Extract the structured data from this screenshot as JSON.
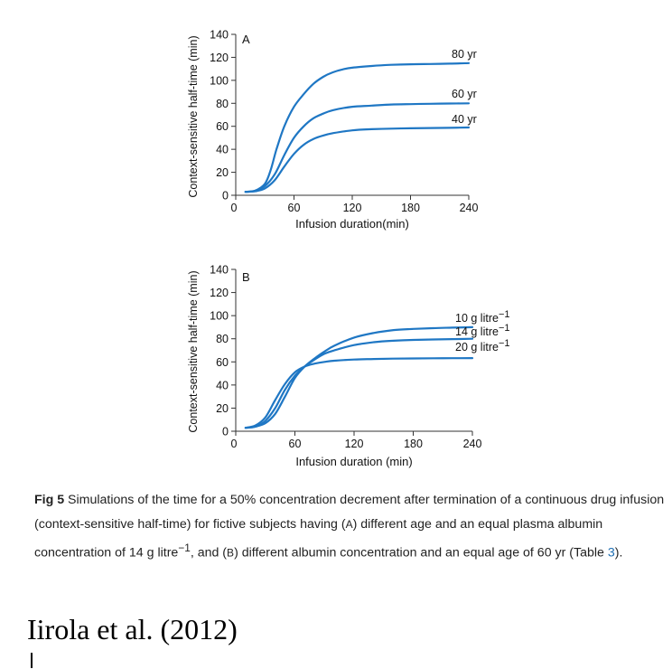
{
  "chart_data": [
    {
      "type": "line",
      "panel_label": "A",
      "xlabel": "Infusion duration(min)",
      "ylabel": "Context-sensitive half-time (min)",
      "xlim": [
        0,
        240
      ],
      "ylim": [
        0,
        140
      ],
      "x_ticks": [
        0,
        60,
        120,
        180,
        240
      ],
      "y_ticks": [
        0,
        20,
        40,
        60,
        80,
        100,
        120,
        140
      ],
      "grid": false,
      "series": [
        {
          "name": "80 yr",
          "color": "#1f77c4",
          "x": [
            10,
            20,
            30,
            36,
            42,
            50,
            60,
            70,
            80,
            90,
            100,
            110,
            120,
            140,
            160,
            180,
            200,
            220,
            240
          ],
          "y": [
            3,
            4,
            10,
            22,
            40,
            60,
            77,
            88,
            97,
            103,
            107,
            109.5,
            111,
            112.5,
            113.5,
            114,
            114.2,
            114.5,
            115
          ]
        },
        {
          "name": "60 yr",
          "color": "#1f77c4",
          "x": [
            10,
            20,
            30,
            40,
            50,
            60,
            70,
            80,
            90,
            100,
            120,
            140,
            160,
            180,
            200,
            220,
            240
          ],
          "y": [
            3,
            4,
            8,
            18,
            35,
            50,
            60,
            67,
            71,
            74,
            77,
            78,
            79,
            79.3,
            79.6,
            79.8,
            80
          ]
        },
        {
          "name": "40 yr",
          "color": "#1f77c4",
          "x": [
            10,
            20,
            30,
            40,
            50,
            60,
            70,
            80,
            90,
            100,
            120,
            140,
            160,
            180,
            200,
            220,
            240
          ],
          "y": [
            3,
            3.5,
            6,
            13,
            25,
            36,
            44,
            49,
            52,
            54,
            56.5,
            57.5,
            58,
            58.3,
            58.5,
            58.7,
            59
          ]
        }
      ]
    },
    {
      "type": "line",
      "panel_label": "B",
      "xlabel": "Infusion duration (min)",
      "ylabel": "Context-sensitive half-time (min)",
      "xlim": [
        0,
        240
      ],
      "ylim": [
        0,
        140
      ],
      "x_ticks": [
        0,
        60,
        120,
        180,
        240
      ],
      "y_ticks": [
        0,
        20,
        40,
        60,
        80,
        100,
        120,
        140
      ],
      "grid": false,
      "series": [
        {
          "name": "10 g litre−1",
          "color": "#1f77c4",
          "x": [
            10,
            20,
            30,
            40,
            50,
            60,
            70,
            80,
            90,
            100,
            120,
            140,
            160,
            180,
            200,
            220,
            240
          ],
          "y": [
            3,
            4,
            7,
            15,
            30,
            46,
            56,
            63,
            69,
            74,
            81,
            85,
            87.5,
            88.5,
            89.2,
            89.6,
            90
          ]
        },
        {
          "name": "14 g litre−1",
          "color": "#1f77c4",
          "x": [
            10,
            20,
            30,
            40,
            50,
            60,
            70,
            80,
            90,
            100,
            120,
            140,
            160,
            180,
            200,
            220,
            240
          ],
          "y": [
            3,
            4,
            9,
            20,
            36,
            48,
            56,
            62,
            67,
            70,
            74.5,
            77,
            78.3,
            79,
            79.4,
            79.7,
            80
          ]
        },
        {
          "name": "20 g litre−1",
          "color": "#1f77c4",
          "x": [
            10,
            20,
            30,
            40,
            50,
            60,
            70,
            80,
            90,
            100,
            120,
            140,
            160,
            180,
            200,
            220,
            240
          ],
          "y": [
            3,
            5,
            12,
            27,
            41,
            51,
            56,
            58.5,
            60,
            61,
            62,
            62.5,
            62.8,
            63,
            63.1,
            63.2,
            63.3
          ]
        }
      ]
    }
  ],
  "caption": {
    "fig_label": "Fig 5",
    "part1": " Simulations of the time for a 50% concentration decrement after termination of a continuous drug infusion (context-sensitive half-time) for fictive subjects having (",
    "sc_a": "A",
    "part2": ") different age and an equal plasma albumin concentration of 14 g litre",
    "sup": "−1",
    "part3": ", and (",
    "sc_b": "B",
    "part4": ") different albumin concentration and an equal age of 60 yr (Table ",
    "table_ref": "3",
    "part5": ")."
  },
  "citation": "Iirola et al. (2012)"
}
